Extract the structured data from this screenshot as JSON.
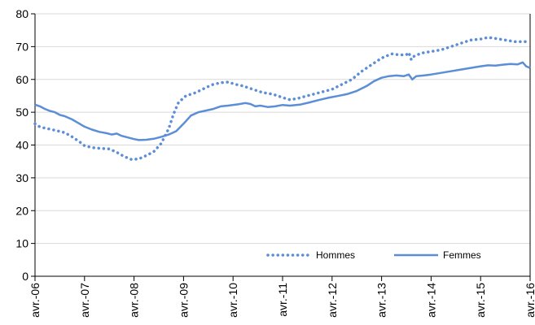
{
  "chart_data": {
    "type": "line",
    "title": "",
    "xlabel": "",
    "ylabel": "",
    "ylim": [
      0,
      80
    ],
    "yticks": [
      "0",
      "10",
      "20",
      "30",
      "40",
      "50",
      "60",
      "70",
      "80"
    ],
    "x_tick_labels": [
      "avr.-06",
      "avr.-07",
      "avr.-08",
      "avr.-09",
      "avr.-10",
      "avr.-11",
      "avr.-12",
      "avr.-13",
      "avr.-14",
      "avr.-15",
      "avr.-16"
    ],
    "x_unit": "years since avr.-06",
    "xlim": [
      0,
      10
    ],
    "grid": "horizontal",
    "legend_position": "bottom-right",
    "series": [
      {
        "name": "Hommes",
        "style": "dotted",
        "color": "#5b8ed6",
        "points": [
          [
            0.0,
            46.5
          ],
          [
            0.1,
            45.5
          ],
          [
            0.25,
            45.0
          ],
          [
            0.4,
            44.5
          ],
          [
            0.6,
            43.8
          ],
          [
            0.75,
            42.5
          ],
          [
            0.9,
            41.0
          ],
          [
            1.0,
            39.8
          ],
          [
            1.15,
            39.2
          ],
          [
            1.3,
            39.0
          ],
          [
            1.5,
            38.8
          ],
          [
            1.65,
            37.8
          ],
          [
            1.8,
            36.5
          ],
          [
            1.95,
            35.6
          ],
          [
            2.1,
            35.8
          ],
          [
            2.25,
            36.8
          ],
          [
            2.4,
            38.0
          ],
          [
            2.55,
            40.5
          ],
          [
            2.7,
            45.0
          ],
          [
            2.8,
            49.5
          ],
          [
            2.9,
            53.0
          ],
          [
            3.05,
            55.0
          ],
          [
            3.25,
            56.0
          ],
          [
            3.45,
            57.5
          ],
          [
            3.6,
            58.5
          ],
          [
            3.75,
            59.0
          ],
          [
            3.9,
            59.2
          ],
          [
            4.05,
            58.5
          ],
          [
            4.2,
            58.0
          ],
          [
            4.4,
            57.0
          ],
          [
            4.6,
            56.0
          ],
          [
            4.8,
            55.5
          ],
          [
            5.0,
            54.5
          ],
          [
            5.15,
            53.8
          ],
          [
            5.3,
            54.2
          ],
          [
            5.5,
            55.0
          ],
          [
            5.75,
            56.0
          ],
          [
            6.0,
            57.0
          ],
          [
            6.2,
            58.5
          ],
          [
            6.4,
            60.0
          ],
          [
            6.6,
            62.5
          ],
          [
            6.8,
            64.5
          ],
          [
            7.0,
            66.5
          ],
          [
            7.2,
            67.8
          ],
          [
            7.35,
            67.5
          ],
          [
            7.5,
            67.5
          ],
          [
            7.55,
            68.2
          ],
          [
            7.6,
            66.0
          ],
          [
            7.65,
            67.0
          ],
          [
            7.8,
            68.0
          ],
          [
            8.0,
            68.5
          ],
          [
            8.2,
            69.0
          ],
          [
            8.4,
            70.0
          ],
          [
            8.6,
            71.0
          ],
          [
            8.8,
            72.0
          ],
          [
            9.0,
            72.3
          ],
          [
            9.15,
            72.8
          ],
          [
            9.3,
            72.5
          ],
          [
            9.5,
            72.0
          ],
          [
            9.7,
            71.5
          ],
          [
            9.85,
            71.5
          ],
          [
            10.0,
            71.5
          ]
        ]
      },
      {
        "name": "Femmes",
        "style": "solid",
        "color": "#5b8ed6",
        "points": [
          [
            0.0,
            52.3
          ],
          [
            0.1,
            51.8
          ],
          [
            0.2,
            51.0
          ],
          [
            0.3,
            50.4
          ],
          [
            0.4,
            50.0
          ],
          [
            0.5,
            49.2
          ],
          [
            0.6,
            48.8
          ],
          [
            0.75,
            47.8
          ],
          [
            0.9,
            46.5
          ],
          [
            1.0,
            45.6
          ],
          [
            1.15,
            44.7
          ],
          [
            1.3,
            44.0
          ],
          [
            1.45,
            43.6
          ],
          [
            1.55,
            43.2
          ],
          [
            1.65,
            43.5
          ],
          [
            1.75,
            42.8
          ],
          [
            1.9,
            42.2
          ],
          [
            2.0,
            41.8
          ],
          [
            2.1,
            41.5
          ],
          [
            2.25,
            41.6
          ],
          [
            2.4,
            41.9
          ],
          [
            2.55,
            42.5
          ],
          [
            2.7,
            43.2
          ],
          [
            2.85,
            44.2
          ],
          [
            3.0,
            46.5
          ],
          [
            3.15,
            49.0
          ],
          [
            3.3,
            50.0
          ],
          [
            3.45,
            50.5
          ],
          [
            3.6,
            51.0
          ],
          [
            3.75,
            51.8
          ],
          [
            3.9,
            52.0
          ],
          [
            4.1,
            52.4
          ],
          [
            4.25,
            52.8
          ],
          [
            4.35,
            52.5
          ],
          [
            4.45,
            51.8
          ],
          [
            4.55,
            52.0
          ],
          [
            4.7,
            51.6
          ],
          [
            4.85,
            51.8
          ],
          [
            5.0,
            52.2
          ],
          [
            5.15,
            52.0
          ],
          [
            5.35,
            52.3
          ],
          [
            5.55,
            53.0
          ],
          [
            5.75,
            53.8
          ],
          [
            5.95,
            54.5
          ],
          [
            6.1,
            54.9
          ],
          [
            6.3,
            55.5
          ],
          [
            6.5,
            56.5
          ],
          [
            6.7,
            58.0
          ],
          [
            6.85,
            59.5
          ],
          [
            7.0,
            60.5
          ],
          [
            7.15,
            61.0
          ],
          [
            7.3,
            61.2
          ],
          [
            7.45,
            61.0
          ],
          [
            7.55,
            61.5
          ],
          [
            7.62,
            60.0
          ],
          [
            7.7,
            61.0
          ],
          [
            7.85,
            61.2
          ],
          [
            8.0,
            61.5
          ],
          [
            8.2,
            62.0
          ],
          [
            8.4,
            62.5
          ],
          [
            8.6,
            63.0
          ],
          [
            8.8,
            63.5
          ],
          [
            9.0,
            64.0
          ],
          [
            9.15,
            64.3
          ],
          [
            9.3,
            64.2
          ],
          [
            9.45,
            64.5
          ],
          [
            9.6,
            64.7
          ],
          [
            9.75,
            64.6
          ],
          [
            9.85,
            65.2
          ],
          [
            9.92,
            64.0
          ],
          [
            10.0,
            63.5
          ]
        ]
      }
    ]
  }
}
